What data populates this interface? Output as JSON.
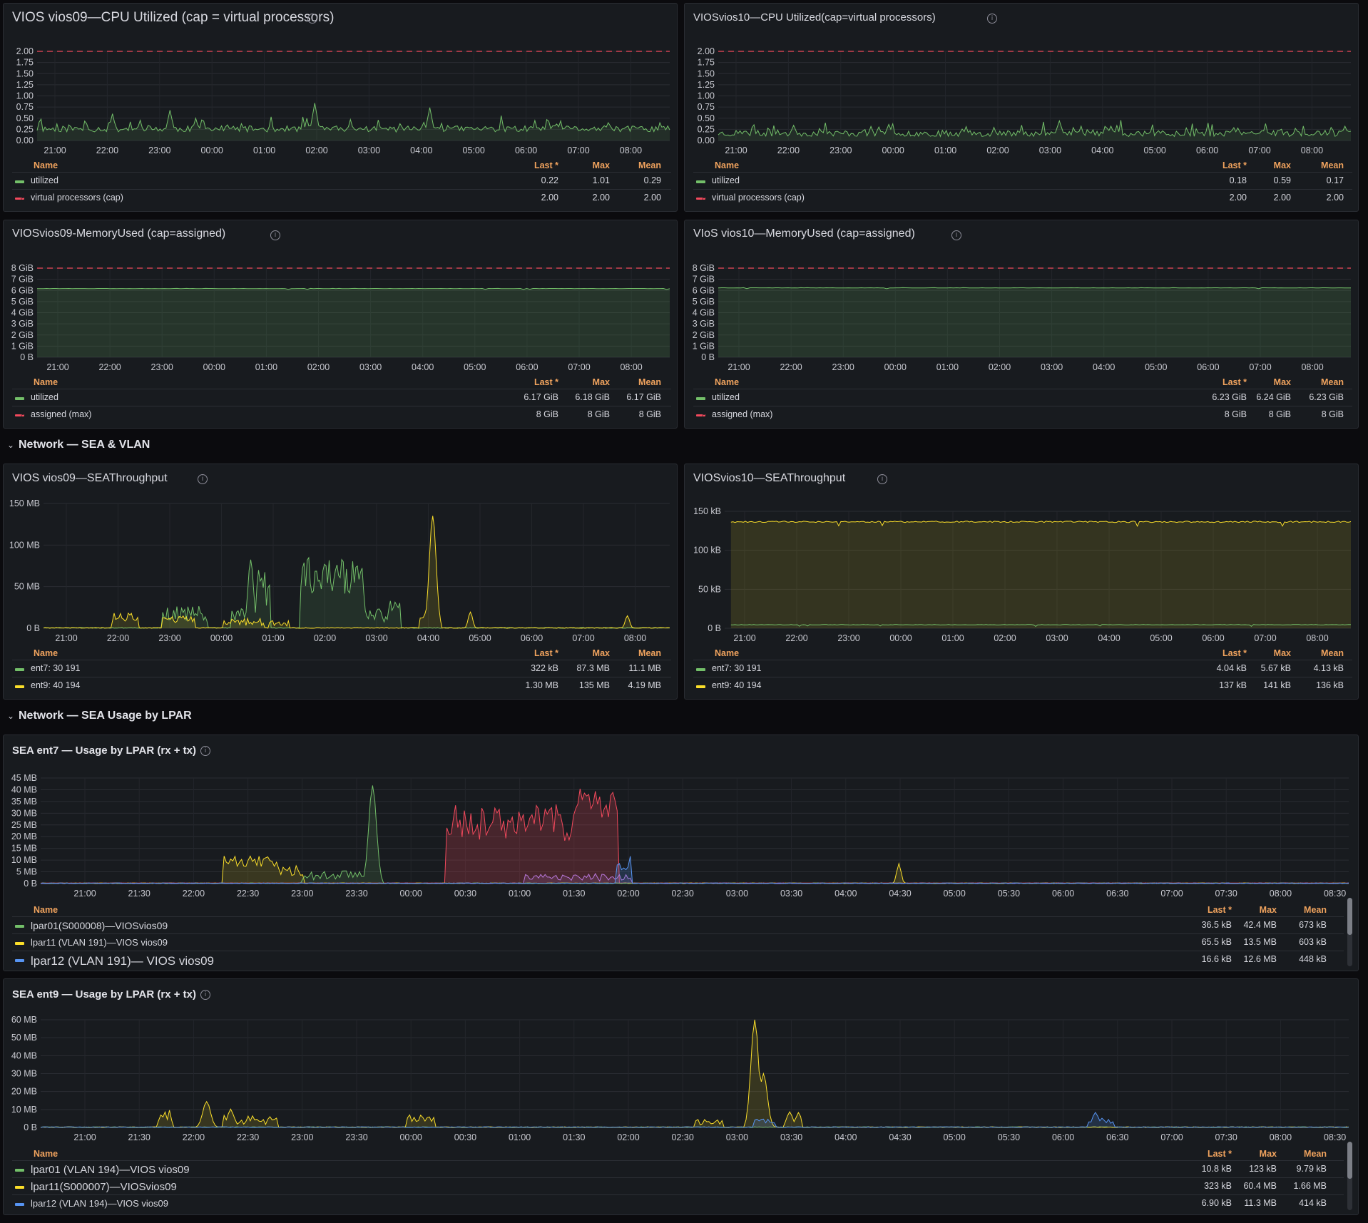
{
  "rows": [
    {
      "title": "Network — SEA & VLAN"
    },
    {
      "title": "Network — SEA Usage by LPAR"
    }
  ],
  "legend_headers": {
    "name": "Name",
    "last": "Last *",
    "max": "Max",
    "mean": "Mean"
  },
  "colors": {
    "green": "#73bf69",
    "yellow": "#fade2a",
    "red": "#f2495c",
    "blue": "#5794f2",
    "purple": "#b877d9",
    "orange_header": "#f0a35e"
  },
  "panels": [
    {
      "id": "cpu09",
      "title": "VIOS vios09—CPU Utilized (cap = virtual processors)",
      "yticks": [
        "2.00",
        "1.75",
        "1.50",
        "1.25",
        "1.00",
        "0.75",
        "0.50",
        "0.25",
        "0.00"
      ],
      "xticks": [
        "21:00",
        "22:00",
        "23:00",
        "00:00",
        "01:00",
        "02:00",
        "03:00",
        "04:00",
        "05:00",
        "06:00",
        "07:00",
        "08:00"
      ],
      "legend": [
        {
          "name": "utilized",
          "color": "#73bf69",
          "style": "solid",
          "last": "0.22",
          "max": "1.01",
          "mean": "0.29"
        },
        {
          "name": "virtual processors (cap)",
          "color": "#f2495c",
          "style": "dash",
          "last": "2.00",
          "max": "2.00",
          "mean": "2.00"
        }
      ]
    },
    {
      "id": "cpu10",
      "title": "VIOSvios10—CPU Utilized(cap=virtual processors)",
      "yticks": [
        "2.00",
        "1.75",
        "1.50",
        "1.25",
        "1.00",
        "0.75",
        "0.50",
        "0.25",
        "0.00"
      ],
      "xticks": [
        "21:00",
        "22:00",
        "23:00",
        "00:00",
        "01:00",
        "02:00",
        "03:00",
        "04:00",
        "05:00",
        "06:00",
        "07:00",
        "08:00"
      ],
      "legend": [
        {
          "name": "utilized",
          "color": "#73bf69",
          "style": "solid",
          "last": "0.18",
          "max": "0.59",
          "mean": "0.17"
        },
        {
          "name": "virtual processors (cap)",
          "color": "#f2495c",
          "style": "dash",
          "last": "2.00",
          "max": "2.00",
          "mean": "2.00"
        }
      ]
    },
    {
      "id": "mem09",
      "title": "VIOSvios09-MemoryUsed (cap=assigned)",
      "yticks": [
        "8 GiB",
        "7 GiB",
        "6 GiB",
        "5 GiB",
        "4 GiB",
        "3 GiB",
        "2 GiB",
        "1 GiB",
        "0 B"
      ],
      "xticks": [
        "21:00",
        "22:00",
        "23:00",
        "00:00",
        "01:00",
        "02:00",
        "03:00",
        "04:00",
        "05:00",
        "06:00",
        "07:00",
        "08:00"
      ],
      "legend": [
        {
          "name": "utilized",
          "color": "#73bf69",
          "style": "solid",
          "last": "6.17 GiB",
          "max": "6.18 GiB",
          "mean": "6.17 GiB"
        },
        {
          "name": "assigned (max)",
          "color": "#f2495c",
          "style": "dash",
          "last": "8 GiB",
          "max": "8 GiB",
          "mean": "8 GiB"
        }
      ]
    },
    {
      "id": "mem10",
      "title": "VIoS vios10—MemoryUsed (cap=assigned)",
      "yticks": [
        "8 GiB",
        "7 GiB",
        "6 GiB",
        "5 GiB",
        "4 GiB",
        "3 GiB",
        "2 GiB",
        "1 GiB",
        "0 B"
      ],
      "xticks": [
        "21:00",
        "22:00",
        "23:00",
        "00:00",
        "01:00",
        "02:00",
        "03:00",
        "04:00",
        "05:00",
        "06:00",
        "07:00",
        "08:00"
      ],
      "legend": [
        {
          "name": "utilized",
          "color": "#73bf69",
          "style": "solid",
          "last": "6.23 GiB",
          "max": "6.24 GiB",
          "mean": "6.23 GiB"
        },
        {
          "name": "assigned (max)",
          "color": "#f2495c",
          "style": "dash",
          "last": "8 GiB",
          "max": "8 GiB",
          "mean": "8 GiB"
        }
      ]
    },
    {
      "id": "sea09",
      "title": "VIOS vios09—SEAThroughput",
      "yticks": [
        "150 MB",
        "100 MB",
        "50 MB",
        "0 B"
      ],
      "xticks": [
        "21:00",
        "22:00",
        "23:00",
        "00:00",
        "01:00",
        "02:00",
        "03:00",
        "04:00",
        "05:00",
        "06:00",
        "07:00",
        "08:00"
      ],
      "legend": [
        {
          "name": "ent7: 30 191",
          "color": "#73bf69",
          "style": "solid",
          "last": "322 kB",
          "max": "87.3 MB",
          "mean": "11.1 MB"
        },
        {
          "name": "ent9: 40 194",
          "color": "#fade2a",
          "style": "solid",
          "last": "1.30 MB",
          "max": "135 MB",
          "mean": "4.19 MB"
        }
      ]
    },
    {
      "id": "sea10",
      "title": "VIOSvios10—SEAThroughput",
      "yticks": [
        "150 kB",
        "100 kB",
        "50 kB",
        "0 B"
      ],
      "xticks": [
        "21:00",
        "22:00",
        "23:00",
        "00:00",
        "01:00",
        "02:00",
        "03:00",
        "04:00",
        "05:00",
        "06:00",
        "07:00",
        "08:00"
      ],
      "legend": [
        {
          "name": "ent7: 30 191",
          "color": "#73bf69",
          "style": "solid",
          "last": "4.04 kB",
          "max": "5.67 kB",
          "mean": "4.13 kB"
        },
        {
          "name": "ent9: 40 194",
          "color": "#fade2a",
          "style": "solid",
          "last": "137 kB",
          "max": "141 kB",
          "mean": "136 kB"
        }
      ]
    },
    {
      "id": "ent7",
      "title": "SEA ent7 — Usage by LPAR (rx + tx)",
      "yticks": [
        "45 MB",
        "40 MB",
        "35 MB",
        "30 MB",
        "25 MB",
        "20 MB",
        "15 MB",
        "10 MB",
        "5 MB",
        "0 B"
      ],
      "xticks": [
        "21:00",
        "21:30",
        "22:00",
        "22:30",
        "23:00",
        "23:30",
        "00:00",
        "00:30",
        "01:00",
        "01:30",
        "02:00",
        "02:30",
        "03:00",
        "03:30",
        "04:00",
        "04:30",
        "05:00",
        "05:30",
        "06:00",
        "06:30",
        "07:00",
        "07:30",
        "08:00",
        "08:30"
      ],
      "legend": [
        {
          "name": "lpar01(S000008)—VIOSvios09",
          "color": "#73bf69",
          "style": "solid",
          "last": "36.5 kB",
          "max": "42.4 MB",
          "mean": "673 kB"
        },
        {
          "name": "lpar11 (VLAN 191)—VIOS vios09",
          "color": "#fade2a",
          "style": "solid",
          "last": "65.5 kB",
          "max": "13.5 MB",
          "mean": "603 kB"
        },
        {
          "name": "lpar12 (VLAN 191)— VIOS vios09",
          "color": "#5794f2",
          "style": "solid",
          "last": "16.6 kB",
          "max": "12.6 MB",
          "mean": "448 kB"
        }
      ]
    },
    {
      "id": "ent9",
      "title": "SEA ent9 — Usage by LPAR (rx + tx)",
      "yticks": [
        "60 MB",
        "50 MB",
        "40 MB",
        "30 MB",
        "20 MB",
        "10 MB",
        "0 B"
      ],
      "xticks": [
        "21:00",
        "21:30",
        "22:00",
        "22:30",
        "23:00",
        "23:30",
        "00:00",
        "00:30",
        "01:00",
        "01:30",
        "02:00",
        "02:30",
        "03:00",
        "03:30",
        "04:00",
        "04:30",
        "05:00",
        "05:30",
        "06:00",
        "06:30",
        "07:00",
        "07:30",
        "08:00",
        "08:30"
      ],
      "legend": [
        {
          "name": "lpar01 (VLAN 194)—VIOS vios09",
          "color": "#73bf69",
          "style": "solid",
          "last": "10.8 kB",
          "max": "123 kB",
          "mean": "9.79 kB"
        },
        {
          "name": "lpar11(S000007)—VIOSvios09",
          "color": "#fade2a",
          "style": "solid",
          "last": "323 kB",
          "max": "60.4 MB",
          "mean": "1.66 MB"
        },
        {
          "name": "lpar12 (VLAN 194)—VIOS vios09",
          "color": "#5794f2",
          "style": "solid",
          "last": "6.90 kB",
          "max": "11.3 MB",
          "mean": "414 kB"
        }
      ]
    }
  ]
}
